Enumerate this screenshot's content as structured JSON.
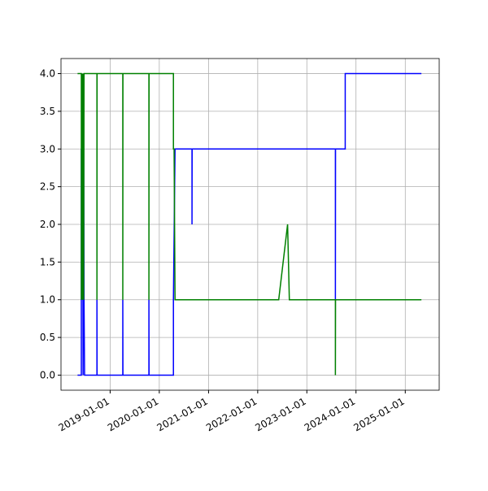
{
  "chart_data": {
    "type": "line",
    "xlim": [
      "2018-01-01",
      "2025-09-10"
    ],
    "xticks": [
      "2019-01-01",
      "2020-01-01",
      "2021-01-01",
      "2022-01-01",
      "2023-01-01",
      "2024-01-01",
      "2025-01-01"
    ],
    "ylim": [
      -0.2,
      4.2
    ],
    "yticks": [
      {
        "value": 0,
        "label": "0.0"
      },
      {
        "value": 0.5,
        "label": "0.5"
      },
      {
        "value": 1,
        "label": "1.0"
      },
      {
        "value": 1.5,
        "label": "1.5"
      },
      {
        "value": 2,
        "label": "2.0"
      },
      {
        "value": 2.5,
        "label": "2.5"
      },
      {
        "value": 3,
        "label": "3.0"
      },
      {
        "value": 3.5,
        "label": "3.5"
      },
      {
        "value": 4,
        "label": "4.0"
      }
    ],
    "grid": true,
    "series": [
      {
        "color": "#0000ff",
        "x": [
          "2018-05-04",
          "2018-06-01",
          "2018-06-01",
          "2018-06-05",
          "2018-06-10",
          "2018-06-14",
          "2018-06-18",
          "2018-06-21",
          "2018-06-25",
          "2018-09-25",
          "2018-09-25",
          "2018-09-26",
          "2019-04-05",
          "2019-04-05",
          "2019-04-06",
          "2019-10-16",
          "2019-10-16",
          "2019-10-17",
          "2020-04-15",
          "2020-04-15",
          "2020-04-27",
          "2020-08-31",
          "2020-08-31",
          "2020-09-01",
          "2023-08-01",
          "2023-08-01",
          "2023-08-02",
          "2023-10-13",
          "2023-10-13",
          "2025-05-01"
        ],
        "values": [
          0,
          0,
          3,
          1,
          4,
          0,
          4,
          1,
          0,
          0,
          1,
          0,
          0,
          1,
          0,
          0,
          1,
          0,
          0,
          1,
          3,
          3,
          2,
          3,
          3,
          1,
          3,
          3,
          4,
          4
        ]
      },
      {
        "color": "#008000",
        "x": [
          "2018-05-04",
          "2018-06-01",
          "2018-06-01",
          "2018-06-05",
          "2018-06-10",
          "2018-06-14",
          "2018-06-18",
          "2018-06-21",
          "2018-09-25",
          "2018-09-25",
          "2018-09-26",
          "2019-04-05",
          "2019-04-05",
          "2019-04-06",
          "2019-10-16",
          "2019-10-16",
          "2019-10-17",
          "2020-04-15",
          "2020-04-15",
          "2020-04-20",
          "2020-04-27",
          "2022-06-06",
          "2022-08-11",
          "2022-08-24",
          "2023-08-01",
          "2023-08-01",
          "2023-08-02",
          "2025-05-01"
        ],
        "values": [
          4,
          4,
          1,
          4,
          1,
          4,
          1,
          4,
          4,
          1,
          4,
          4,
          1,
          4,
          4,
          1,
          4,
          4,
          3,
          3,
          1,
          1,
          2,
          1,
          1,
          0,
          1,
          1
        ]
      }
    ]
  }
}
